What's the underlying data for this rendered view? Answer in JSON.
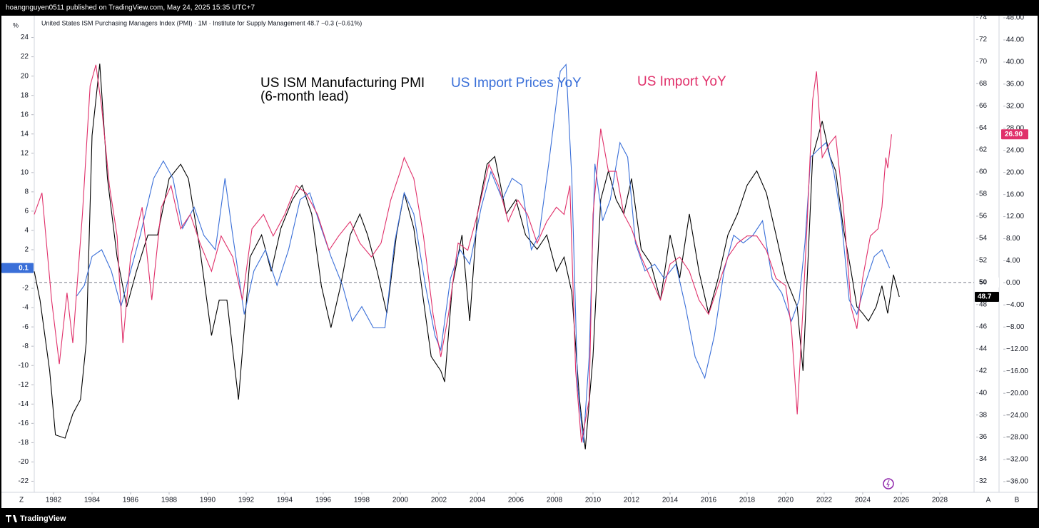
{
  "header": {
    "published": "hoangnguyen0511 published on TradingView.com, May 24, 2025 15:35 UTC+7"
  },
  "footer": {
    "brand": "TradingView"
  },
  "ui": {
    "z": "Z",
    "a": "A",
    "b": "B"
  },
  "chart_data": {
    "type": "line",
    "title": "United States ISM Purchasing Managers Index (PMI) · 1M · Institute for Supply Management  48.7  −0.3 (−0.61%)",
    "ylabel": "%",
    "annotations": [
      {
        "text": "(6-month lead)",
        "color": "#000000"
      }
    ],
    "xlim": [
      1981,
      2029.78
    ],
    "xticks": [
      1982,
      1984,
      1986,
      1988,
      1990,
      1992,
      1994,
      1996,
      1998,
      2000,
      2002,
      2004,
      2006,
      2008,
      2010,
      2012,
      2014,
      2016,
      2018,
      2020,
      2022,
      2024,
      2026,
      2028
    ],
    "ylim": [
      -23.15,
      26.26
    ],
    "yticks": [
      24,
      22,
      20,
      18,
      16,
      14,
      12,
      10,
      8,
      6,
      4,
      2,
      -2,
      -4,
      -6,
      -8,
      -10,
      -12,
      -14,
      -16,
      -18,
      -20,
      -22
    ],
    "y2lim": [
      31,
      74.15
    ],
    "y2ticks": [
      74,
      72,
      70,
      68,
      66,
      64,
      62,
      60,
      58,
      56,
      54,
      52,
      48,
      46,
      44,
      42,
      40,
      38,
      36,
      34,
      32
    ],
    "y3lim": [
      -37.94,
      48.39
    ],
    "y3ticks": [
      {
        "value": 48,
        "label": "48.00"
      },
      {
        "value": 44,
        "label": "44.00"
      },
      {
        "value": 40,
        "label": "40.00"
      },
      {
        "value": 36,
        "label": "36.00"
      },
      {
        "value": 32,
        "label": "32.00"
      },
      {
        "value": 28,
        "label": "28.00"
      },
      {
        "value": 24,
        "label": "24.00"
      },
      {
        "value": 20,
        "label": "20.00"
      },
      {
        "value": 16,
        "label": "16.00"
      },
      {
        "value": 12,
        "label": "12.00"
      },
      {
        "value": 8,
        "label": "8.00"
      },
      {
        "value": 4,
        "label": "4.00"
      },
      {
        "value": 0,
        "label": "0.00"
      },
      {
        "value": -4,
        "label": "−4.00"
      },
      {
        "value": -8,
        "label": "−8.00"
      },
      {
        "value": -12,
        "label": "−12.00"
      },
      {
        "value": -16,
        "label": "−16.00"
      },
      {
        "value": -20,
        "label": "−20.00"
      },
      {
        "value": -24,
        "label": "−24.00"
      },
      {
        "value": -28,
        "label": "−28.00"
      },
      {
        "value": -32,
        "label": "−32.00"
      },
      {
        "value": -36,
        "label": "−36.00"
      }
    ],
    "ref_line": {
      "value": 50,
      "axis": "y2"
    },
    "series": [
      {
        "name": "US ISM Manufacturing PMI",
        "color": "#000000",
        "axis": "y2",
        "last_label": 48.7,
        "x": [
          1981.0,
          1981.3,
          1981.8,
          1982.1,
          1982.6,
          1983.0,
          1983.4,
          1983.7,
          1984.0,
          1984.4,
          1984.8,
          1985.3,
          1985.8,
          1986.3,
          1986.9,
          1987.4,
          1988.0,
          1988.6,
          1989.0,
          1989.6,
          1990.2,
          1990.6,
          1991.0,
          1991.6,
          1992.2,
          1992.8,
          1993.3,
          1993.8,
          1994.4,
          1994.9,
          1995.4,
          1995.9,
          1996.4,
          1996.9,
          1997.4,
          1997.9,
          1998.3,
          1998.8,
          1999.3,
          1999.8,
          2000.2,
          2000.7,
          2001.2,
          2001.6,
          2002.1,
          2002.3,
          2002.7,
          2003.2,
          2003.6,
          2004.0,
          2004.5,
          2004.9,
          2005.5,
          2006.0,
          2006.5,
          2007.1,
          2007.6,
          2008.1,
          2008.5,
          2008.9,
          2009.3,
          2009.6,
          2010.0,
          2010.4,
          2010.8,
          2011.2,
          2011.6,
          2012.0,
          2012.5,
          2013.0,
          2013.5,
          2014.0,
          2014.5,
          2015.0,
          2015.5,
          2016.0,
          2016.5,
          2017.0,
          2017.5,
          2018.0,
          2018.5,
          2019.0,
          2019.5,
          2020.0,
          2020.3,
          2020.6,
          2020.9,
          2021.1,
          2021.4,
          2021.6,
          2021.9,
          2022.3,
          2022.6,
          2023.0,
          2023.4,
          2023.7,
          2024.0,
          2024.3,
          2024.7,
          2025.0,
          2025.3,
          2025.6,
          2025.9
        ],
        "values": [
          51,
          48.4,
          42,
          36.2,
          35.9,
          38.1,
          39.4,
          44.6,
          63.3,
          69.8,
          59.4,
          52.3,
          47.8,
          51,
          54.3,
          54.3,
          59.4,
          60.7,
          59.4,
          53,
          45.2,
          48.4,
          48.4,
          39.4,
          52.3,
          54.3,
          51,
          54.9,
          57.5,
          58.8,
          56.2,
          49.7,
          45.9,
          49.7,
          54.3,
          56.2,
          54.3,
          51,
          47.2,
          54.3,
          58.1,
          54.9,
          48.4,
          43.3,
          42,
          41,
          49.7,
          54.3,
          46.5,
          56.2,
          60.7,
          61.4,
          56.2,
          57.5,
          54.3,
          53,
          54.3,
          51,
          52.3,
          49.1,
          39.4,
          34.9,
          43.3,
          57.5,
          60.1,
          57.5,
          56.2,
          59.4,
          53,
          51.7,
          48.4,
          54.3,
          50.4,
          56.2,
          51,
          47.2,
          50.4,
          54.3,
          56.2,
          58.8,
          60.1,
          58.1,
          54.3,
          50.4,
          49.1,
          47.8,
          42,
          49.7,
          61.4,
          62.7,
          64.6,
          61.4,
          60.1,
          54.9,
          51,
          47.8,
          47.2,
          46.5,
          47.8,
          49.7,
          47.2,
          50.7,
          48.7
        ]
      },
      {
        "name": "US Import Prices YoY",
        "color": "#3a6fd8",
        "axis": "y",
        "last_label": 0.1,
        "x": [
          1983.2,
          1983.6,
          1984.0,
          1984.5,
          1985.0,
          1985.5,
          1986.0,
          1986.5,
          1987.2,
          1987.7,
          1988.2,
          1988.7,
          1989.3,
          1989.8,
          1990.4,
          1990.9,
          1991.3,
          1991.9,
          1992.4,
          1993.0,
          1993.6,
          1994.2,
          1994.8,
          1995.3,
          1995.9,
          1996.4,
          1997.0,
          1997.5,
          1998.0,
          1998.6,
          1999.2,
          1999.7,
          2000.2,
          2000.7,
          2001.3,
          2001.8,
          2002.1,
          2002.6,
          2003.1,
          2003.6,
          2004.2,
          2004.7,
          2005.3,
          2005.8,
          2006.3,
          2006.8,
          2007.2,
          2007.7,
          2008.3,
          2008.6,
          2008.9,
          2009.2,
          2009.5,
          2009.8,
          2010.1,
          2010.5,
          2010.9,
          2011.4,
          2011.8,
          2012.2,
          2012.7,
          2013.2,
          2013.7,
          2014.3,
          2014.8,
          2015.3,
          2015.8,
          2016.3,
          2016.8,
          2017.3,
          2017.8,
          2018.3,
          2018.8,
          2019.3,
          2019.8,
          2020.3,
          2020.7,
          2021.0,
          2021.3,
          2021.7,
          2022.1,
          2022.5,
          2022.9,
          2023.3,
          2023.7,
          2024.1,
          2024.6,
          2025.0,
          2025.4
        ],
        "values": [
          -2.8,
          -1.7,
          1.3,
          2,
          -0.2,
          -3.9,
          -0.2,
          3.5,
          9.4,
          11.2,
          9.4,
          4.2,
          6.4,
          3.5,
          2,
          9.4,
          3.5,
          -4.7,
          -0.2,
          2,
          -1.7,
          2,
          7.2,
          7.9,
          4.2,
          1.3,
          -1.7,
          -5.4,
          -3.9,
          -6.1,
          -6.1,
          2.7,
          7.9,
          5.7,
          -1.7,
          -6.9,
          -8.4,
          -1,
          2,
          0.5,
          6.4,
          10.1,
          7.2,
          9.4,
          8.7,
          2,
          3.5,
          10.9,
          20.5,
          21.2,
          9.4,
          -12.1,
          -18,
          -9.1,
          10.9,
          5,
          7.2,
          13.1,
          11.6,
          2.7,
          -0.2,
          0.5,
          -1,
          0.5,
          -3.9,
          -9.1,
          -11.3,
          -6.9,
          -0.2,
          3.5,
          2.7,
          3.5,
          5,
          -1,
          -2.5,
          -5.4,
          -3.2,
          2.7,
          11.6,
          12.4,
          13.1,
          10.1,
          5,
          -3.2,
          -4.7,
          -1.7,
          1.3,
          2,
          0.1
        ]
      },
      {
        "name": "US Import YoY",
        "color": "#e0306a",
        "axis": "y3",
        "last_label": {
          "value": 26.9,
          "label": "26.90"
        },
        "x": [
          1981.0,
          1981.4,
          1981.9,
          1982.3,
          1982.7,
          1983.0,
          1983.5,
          1983.9,
          1984.2,
          1984.5,
          1984.9,
          1985.3,
          1985.6,
          1986.0,
          1986.6,
          1987.1,
          1987.6,
          1988.1,
          1988.6,
          1989.1,
          1989.6,
          1990.2,
          1990.7,
          1991.3,
          1991.8,
          1992.3,
          1992.9,
          1993.4,
          1994.0,
          1994.6,
          1995.1,
          1995.7,
          1996.3,
          1996.8,
          1997.4,
          1997.9,
          1998.5,
          1999.0,
          1999.5,
          2000.0,
          2000.2,
          2000.7,
          2001.2,
          2001.7,
          2002.1,
          2002.5,
          2003.0,
          2003.5,
          2004.0,
          2004.6,
          2005.1,
          2005.6,
          2006.1,
          2006.6,
          2007.1,
          2007.6,
          2008.1,
          2008.5,
          2008.8,
          2009.1,
          2009.4,
          2009.8,
          2010.0,
          2010.4,
          2010.8,
          2011.2,
          2011.6,
          2012.0,
          2012.5,
          2013.0,
          2013.5,
          2014.0,
          2014.5,
          2015.0,
          2015.5,
          2016.0,
          2016.5,
          2017.0,
          2017.5,
          2018.0,
          2018.5,
          2019.0,
          2019.5,
          2020.0,
          2020.3,
          2020.6,
          2020.9,
          2021.1,
          2021.4,
          2021.6,
          2021.9,
          2022.3,
          2022.6,
          2023.0,
          2023.4,
          2023.7,
          2024.0,
          2024.4,
          2024.8,
          2025.0,
          2025.2,
          2025.3,
          2025.5
        ],
        "values": [
          12.4,
          16.3,
          -3.1,
          -14.7,
          -1.8,
          -10.9,
          12.4,
          35.7,
          39.5,
          31.8,
          17.6,
          8.5,
          -10.9,
          4.7,
          13.7,
          -3.1,
          13.7,
          17.6,
          9.8,
          12.4,
          7.2,
          2.1,
          8.5,
          4.7,
          -3.1,
          9.8,
          12.4,
          8.5,
          12.4,
          17.6,
          16.3,
          12.4,
          5.9,
          8.5,
          11.1,
          7.2,
          4.7,
          7.2,
          15,
          20.2,
          22.7,
          18.9,
          8.5,
          -5.7,
          -13.4,
          -5.7,
          7.2,
          5.9,
          12.4,
          21.5,
          17.6,
          11.1,
          15,
          12.4,
          7.2,
          11.1,
          13.7,
          12.4,
          17.6,
          -16,
          -28.9,
          -21.2,
          12.4,
          27.9,
          20.2,
          20.2,
          12.4,
          9.8,
          4.7,
          0.8,
          -3.1,
          3.4,
          4.7,
          2.1,
          -3.1,
          -5.7,
          -0.5,
          4.7,
          7.2,
          8.5,
          8.5,
          5.9,
          0.8,
          -0.5,
          -8.3,
          -23.8,
          -4.4,
          9.8,
          33.1,
          38.3,
          22.7,
          25.3,
          26.6,
          13.7,
          -4.4,
          -8.3,
          0.8,
          8.5,
          9.8,
          13.7,
          22.7,
          20.8,
          26.9
        ]
      }
    ]
  }
}
